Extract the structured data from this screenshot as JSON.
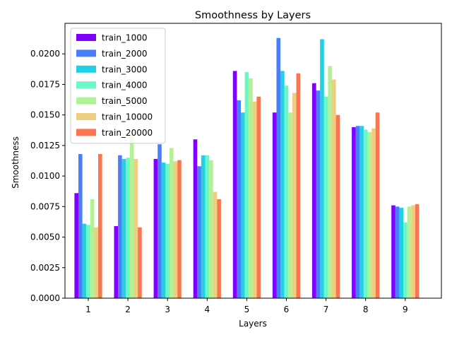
{
  "chart_data": {
    "type": "bar",
    "title": "Smoothness by Layers",
    "xlabel": "Layers",
    "ylabel": "Smoothness",
    "categories": [
      "1",
      "2",
      "3",
      "4",
      "5",
      "6",
      "7",
      "8",
      "9"
    ],
    "ylim": [
      0,
      0.0225
    ],
    "yticks": [
      "0.0000",
      "0.0025",
      "0.0050",
      "0.0075",
      "0.0100",
      "0.0125",
      "0.0150",
      "0.0175",
      "0.0200"
    ],
    "grid": false,
    "legend_position": "top-left",
    "series": [
      {
        "name": "train_1000",
        "color": "#8000ff",
        "values": [
          0.0086,
          0.0059,
          0.0114,
          0.013,
          0.0186,
          0.0152,
          0.0176,
          0.014,
          0.0076
        ]
      },
      {
        "name": "train_2000",
        "color": "#4a7ef8",
        "values": [
          0.0118,
          0.0117,
          0.0126,
          0.0108,
          0.0162,
          0.0213,
          0.017,
          0.0141,
          0.0075
        ]
      },
      {
        "name": "train_3000",
        "color": "#22d0e6",
        "values": [
          0.0061,
          0.0114,
          0.0111,
          0.0117,
          0.0152,
          0.0186,
          0.0212,
          0.0141,
          0.0074
        ]
      },
      {
        "name": "train_4000",
        "color": "#6cf7c7",
        "values": [
          0.006,
          0.0115,
          0.011,
          0.0117,
          0.0185,
          0.0174,
          0.0165,
          0.0138,
          0.0062
        ]
      },
      {
        "name": "train_5000",
        "color": "#b2f296",
        "values": [
          0.0081,
          0.0133,
          0.0123,
          0.0113,
          0.018,
          0.0152,
          0.019,
          0.0136,
          0.0075
        ]
      },
      {
        "name": "train_10000",
        "color": "#eecf82",
        "values": [
          0.0058,
          0.0114,
          0.0112,
          0.0087,
          0.0161,
          0.0168,
          0.0179,
          0.0139,
          0.0076
        ]
      },
      {
        "name": "train_20000",
        "color": "#fa7552",
        "values": [
          0.0118,
          0.0058,
          0.0113,
          0.0081,
          0.0165,
          0.0184,
          0.015,
          0.0152,
          0.0077
        ]
      }
    ]
  }
}
